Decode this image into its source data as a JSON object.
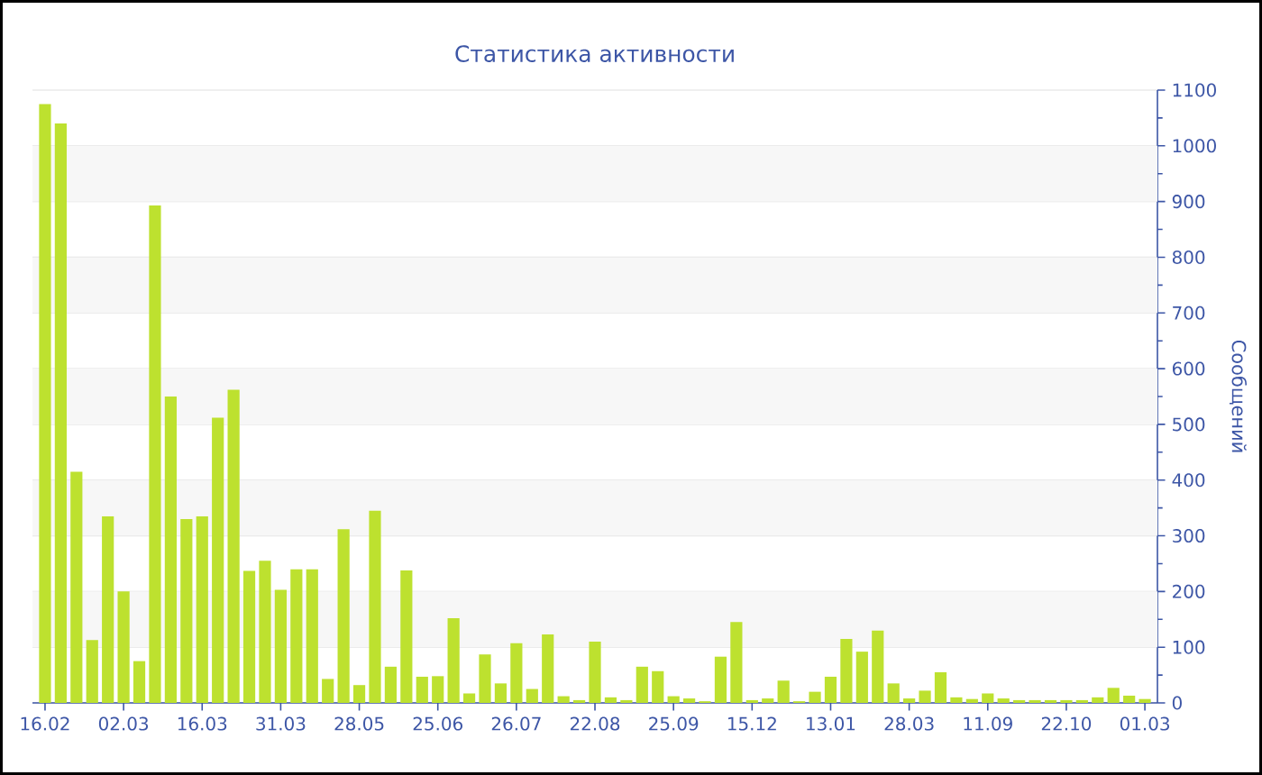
{
  "chart_data": {
    "type": "bar",
    "title": "Статистика активности",
    "ylabel": "Сообщений",
    "categories": [
      "16.02",
      null,
      null,
      null,
      null,
      "02.03",
      null,
      null,
      null,
      null,
      "16.03",
      null,
      null,
      null,
      null,
      "31.03",
      null,
      null,
      null,
      null,
      "28.05",
      null,
      null,
      null,
      null,
      "25.06",
      null,
      null,
      null,
      null,
      "26.07",
      null,
      null,
      null,
      null,
      "22.08",
      null,
      null,
      null,
      null,
      "25.09",
      null,
      null,
      null,
      null,
      "15.12",
      null,
      null,
      null,
      null,
      "13.01",
      null,
      null,
      null,
      null,
      "28.03",
      null,
      null,
      null,
      null,
      "11.09",
      null,
      null,
      null,
      null,
      "22.10",
      null,
      null,
      null,
      null,
      "01.03"
    ],
    "values": [
      1075,
      1040,
      415,
      113,
      335,
      200,
      75,
      893,
      550,
      330,
      335,
      512,
      562,
      237,
      255,
      203,
      240,
      240,
      43,
      312,
      32,
      345,
      65,
      238,
      47,
      48,
      152,
      17,
      87,
      35,
      107,
      25,
      123,
      12,
      5,
      110,
      10,
      5,
      65,
      57,
      12,
      8,
      3,
      83,
      145,
      5,
      8,
      40,
      3,
      20,
      47,
      115,
      92,
      130,
      35,
      8,
      22,
      55,
      10,
      7,
      17,
      8,
      5,
      5,
      5,
      5,
      5,
      10,
      27,
      13,
      7
    ],
    "color": "#bde12f",
    "ylim": [
      0,
      1100
    ],
    "yticks": [
      0,
      100,
      200,
      300,
      400,
      500,
      600,
      700,
      800,
      900,
      1000,
      1100
    ],
    "grid": "y"
  }
}
